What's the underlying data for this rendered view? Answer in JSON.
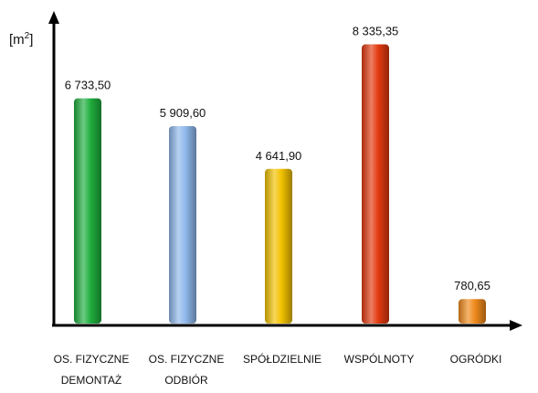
{
  "chart_data": {
    "type": "bar",
    "unit": {
      "base": "[m",
      "sup": "2",
      "close": "]"
    },
    "categories": [
      [
        "OS. FIZYCZNE",
        "DEMONTAŻ"
      ],
      [
        "OS. FIZYCZNE",
        "ODBIÓR"
      ],
      [
        "SPÓŁDZIELNIE"
      ],
      [
        "WSPÓLNOTY"
      ],
      [
        "OGRÓDKI"
      ]
    ],
    "values": [
      6733.5,
      5909.6,
      4641.9,
      8335.35,
      780.65
    ],
    "value_labels": [
      "6 733,50",
      "5 909,60",
      "4 641,90",
      "8 335,35",
      "780,65"
    ],
    "colors": [
      "#1fae3e",
      "#8fb8ec",
      "#f2c200",
      "#e23a10",
      "#f08a1c"
    ],
    "ylim": [
      0,
      9000
    ],
    "grid": false,
    "legend": "none"
  }
}
